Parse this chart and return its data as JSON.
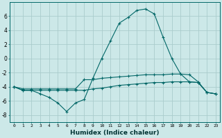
{
  "xlabel": "Humidex (Indice chaleur)",
  "xlim": [
    -0.5,
    23.5
  ],
  "ylim": [
    -9,
    8
  ],
  "yticks": [
    -8,
    -6,
    -4,
    -2,
    0,
    2,
    4,
    6
  ],
  "xticks": [
    0,
    1,
    2,
    3,
    4,
    5,
    6,
    7,
    8,
    9,
    10,
    11,
    12,
    13,
    14,
    15,
    16,
    17,
    18,
    19,
    20,
    21,
    22,
    23
  ],
  "bg_color": "#cce8e8",
  "grid_color": "#aacccc",
  "line_color": "#006666",
  "line1_x": [
    0,
    1,
    2,
    3,
    4,
    5,
    6,
    7,
    8,
    9,
    10,
    11,
    12,
    13,
    14,
    15,
    16,
    17,
    18,
    19,
    20,
    21,
    22,
    23
  ],
  "line1_y": [
    -4.0,
    -4.5,
    -4.5,
    -5.0,
    -5.5,
    -6.3,
    -7.5,
    -6.3,
    -5.8,
    -2.8,
    0.0,
    2.5,
    5.0,
    5.8,
    6.8,
    7.0,
    6.3,
    3.0,
    0.0,
    -2.2,
    -2.3,
    -3.3,
    -4.8,
    -5.0
  ],
  "line2_x": [
    0,
    1,
    2,
    3,
    4,
    5,
    6,
    7,
    8,
    9,
    10,
    11,
    12,
    13,
    14,
    15,
    16,
    17,
    18,
    19,
    20,
    21,
    22,
    23
  ],
  "line2_y": [
    -4.0,
    -4.3,
    -4.3,
    -4.3,
    -4.3,
    -4.3,
    -4.3,
    -4.3,
    -3.0,
    -3.0,
    -2.8,
    -2.7,
    -2.6,
    -2.5,
    -2.4,
    -2.3,
    -2.3,
    -2.3,
    -2.2,
    -2.2,
    -3.3,
    -3.4,
    -4.8,
    -5.0
  ],
  "line3_x": [
    0,
    1,
    2,
    3,
    4,
    5,
    6,
    7,
    8,
    9,
    10,
    11,
    12,
    13,
    14,
    15,
    16,
    17,
    18,
    19,
    20,
    21,
    22,
    23
  ],
  "line3_y": [
    -4.0,
    -4.5,
    -4.5,
    -4.5,
    -4.5,
    -4.5,
    -4.5,
    -4.5,
    -4.5,
    -4.3,
    -4.2,
    -4.0,
    -3.8,
    -3.7,
    -3.6,
    -3.5,
    -3.4,
    -3.4,
    -3.3,
    -3.3,
    -3.3,
    -3.4,
    -4.8,
    -5.0
  ]
}
